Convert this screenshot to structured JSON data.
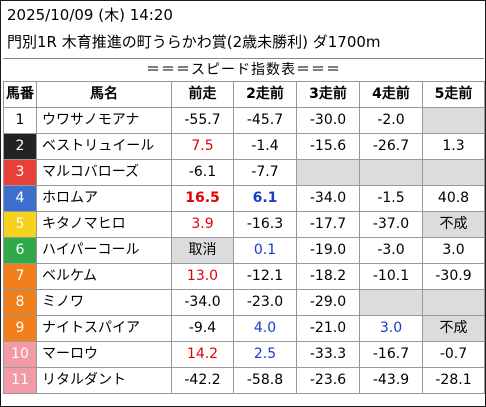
{
  "header": {
    "datetime": "2025/10/09 (木) 14:20",
    "race": "門別1R 木育推進の町うらかわ賞(2歳未勝利) ダ1700m"
  },
  "table_title": "＝＝＝スピード指数表＝＝＝",
  "columns": [
    "馬番",
    "馬名",
    "前走",
    "2走前",
    "3走前",
    "4走前",
    "5走前"
  ],
  "colors": {
    "num_bg": [
      "#ffffff",
      "#222222",
      "#e8413c",
      "#3d6fcc",
      "#f5d21c",
      "#2eaa4a",
      "#f07f1c",
      "#f07f1c",
      "#f07f1c",
      "#f29aa6",
      "#f29aa6"
    ],
    "num_fg": [
      "#000000",
      "#ffffff",
      "#ffffff",
      "#ffffff",
      "#ffffff",
      "#ffffff",
      "#ffffff",
      "#ffffff",
      "#ffffff",
      "#ffffff",
      "#ffffff"
    ],
    "empty_cell": "#dcdcdc",
    "red_text": "#e60000",
    "blue_text": "#1a3acc"
  },
  "rows": [
    {
      "num": "1",
      "name": "ウワサノモアナ",
      "vals": [
        "-55.7",
        "-45.7",
        "-30.0",
        "-2.0",
        ""
      ],
      "styles": [
        "",
        "",
        "",
        "",
        "empty"
      ]
    },
    {
      "num": "2",
      "name": "ベストリュイール",
      "vals": [
        "7.5",
        "-1.4",
        "-15.6",
        "-26.7",
        "1.3"
      ],
      "styles": [
        "red",
        "",
        "",
        "",
        ""
      ]
    },
    {
      "num": "3",
      "name": "マルコバローズ",
      "vals": [
        "-6.1",
        "-7.7",
        "",
        "",
        ""
      ],
      "styles": [
        "",
        "",
        "empty",
        "empty",
        "empty"
      ]
    },
    {
      "num": "4",
      "name": "ホロムア",
      "vals": [
        "16.5",
        "6.1",
        "-34.0",
        "-1.5",
        "40.8"
      ],
      "styles": [
        "red-bold",
        "blue-bold",
        "",
        "",
        ""
      ]
    },
    {
      "num": "5",
      "name": "キタノマヒロ",
      "vals": [
        "3.9",
        "-16.3",
        "-17.7",
        "-37.0",
        "不成"
      ],
      "styles": [
        "red",
        "",
        "",
        "",
        "gray"
      ]
    },
    {
      "num": "6",
      "name": "ハイパーコール",
      "vals": [
        "取消",
        "0.1",
        "-19.0",
        "-3.0",
        "3.0"
      ],
      "styles": [
        "gray",
        "blue",
        "",
        "",
        ""
      ]
    },
    {
      "num": "7",
      "name": "ベルケム",
      "vals": [
        "13.0",
        "-12.1",
        "-18.2",
        "-10.1",
        "-30.9"
      ],
      "styles": [
        "red",
        "",
        "",
        "",
        ""
      ]
    },
    {
      "num": "8",
      "name": "ミノワ",
      "vals": [
        "-34.0",
        "-23.0",
        "-29.0",
        "",
        ""
      ],
      "styles": [
        "",
        "",
        "",
        "empty",
        "empty"
      ]
    },
    {
      "num": "9",
      "name": "ナイトスパイア",
      "vals": [
        "-9.4",
        "4.0",
        "-21.0",
        "3.0",
        "不成"
      ],
      "styles": [
        "",
        "blue",
        "",
        "blue",
        "gray"
      ]
    },
    {
      "num": "10",
      "name": "マーロウ",
      "vals": [
        "14.2",
        "2.5",
        "-33.3",
        "-16.7",
        "-0.7"
      ],
      "styles": [
        "red",
        "blue",
        "",
        "",
        ""
      ]
    },
    {
      "num": "11",
      "name": "リタルダント",
      "vals": [
        "-42.2",
        "-58.8",
        "-23.6",
        "-43.9",
        "-28.1"
      ],
      "styles": [
        "",
        "",
        "",
        "",
        ""
      ]
    }
  ]
}
